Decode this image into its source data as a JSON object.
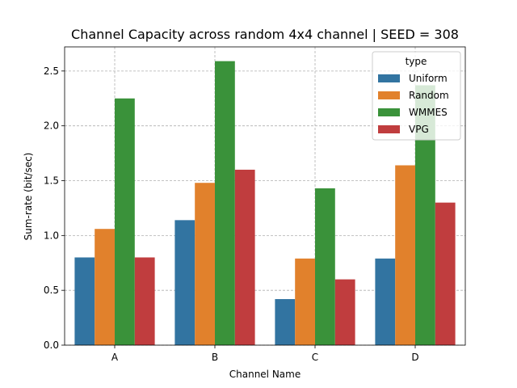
{
  "chart_data": {
    "type": "bar",
    "title": "Channel Capacity across random 4x4 channel | SEED = 308",
    "xlabel": "Channel Name",
    "ylabel": "Sum-rate (bit/sec)",
    "categories": [
      "A",
      "B",
      "C",
      "D"
    ],
    "ylim": [
      0,
      2.72
    ],
    "yticks": [
      "0.0",
      "0.5",
      "1.0",
      "1.5",
      "2.0",
      "2.5"
    ],
    "grid": true,
    "legend": {
      "title": "type",
      "placement": "top-right"
    },
    "series": [
      {
        "name": "Uniform",
        "color": "#3274a1",
        "values": [
          0.8,
          1.14,
          0.42,
          0.79
        ]
      },
      {
        "name": "Random",
        "color": "#e1812c",
        "values": [
          1.06,
          1.48,
          0.79,
          1.64
        ]
      },
      {
        "name": "WMMES",
        "color": "#3a923a",
        "values": [
          2.25,
          2.59,
          1.43,
          2.37
        ]
      },
      {
        "name": "VPG",
        "color": "#c03d3e",
        "values": [
          0.8,
          1.6,
          0.6,
          1.3
        ]
      }
    ]
  }
}
